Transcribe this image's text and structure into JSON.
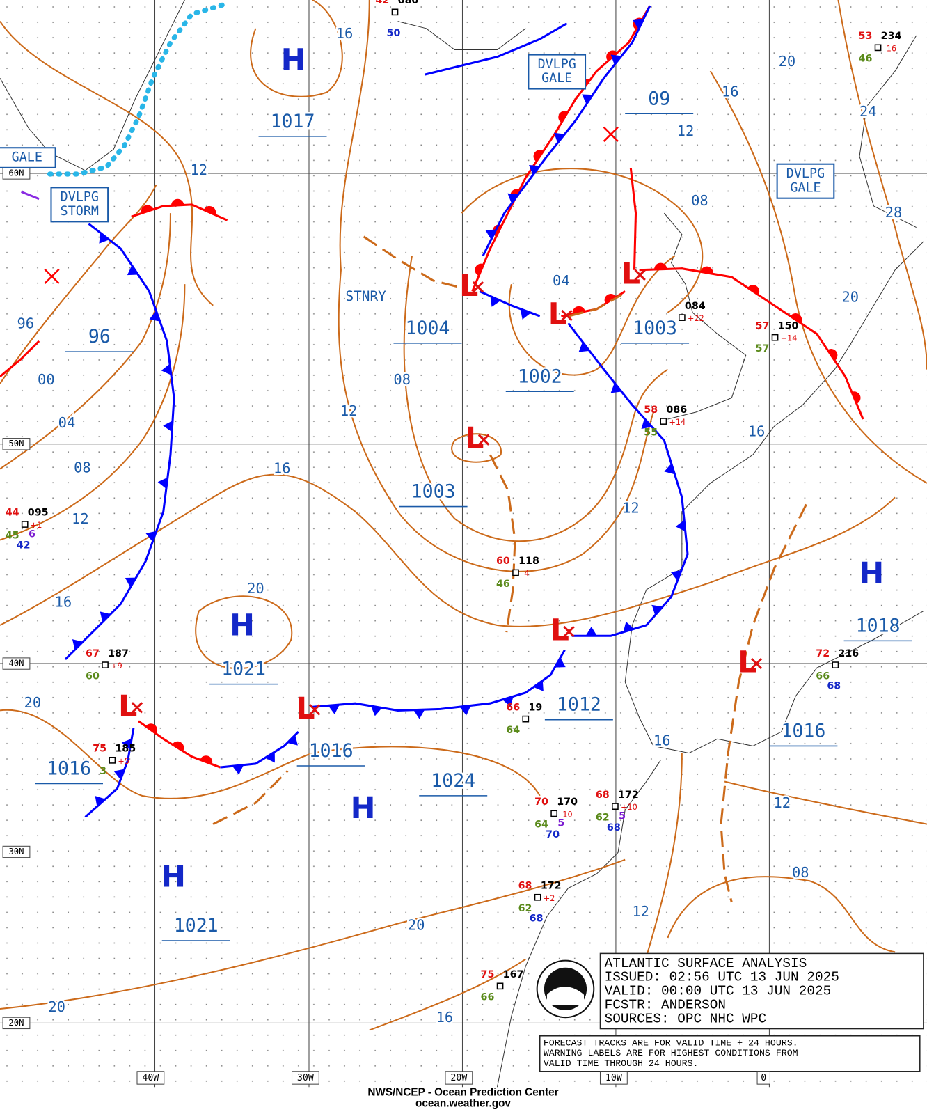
{
  "info_box": [
    "ATLANTIC SURFACE ANALYSIS",
    "ISSUED: 02:56 UTC 13 JUN 2025",
    "VALID:  00:00 UTC 13 JUN 2025",
    "FCSTR:  ANDERSON",
    "SOURCES: OPC NHC WPC"
  ],
  "note": [
    "FORECAST TRACKS ARE FOR VALID TIME + 24 HOURS.",
    "WARNING LABELS ARE FOR HIGHEST CONDITIONS FROM",
    "VALID TIME THROUGH 24 HOURS."
  ],
  "footer": [
    "NWS/NCEP - Ocean Prediction Center",
    "ocean.weather.gov"
  ],
  "lat_labels": [
    "60N",
    "50N",
    "40N",
    "30N",
    "20N"
  ],
  "lon_labels": [
    "40W",
    "30W",
    "20W",
    "10W",
    "0"
  ],
  "centers": [
    "H",
    "H",
    "H",
    "H",
    "H",
    "L",
    "L",
    "L",
    "L",
    "L",
    "L",
    "L",
    "L"
  ],
  "pressure_labels": [
    "1017",
    "1021",
    "1024",
    "1021",
    "1018",
    "1004",
    "1002",
    "1003",
    "1003",
    "1012",
    "1016",
    "1016",
    "1016",
    "96",
    "09"
  ],
  "isobar_labels": [
    "16",
    "12",
    "20",
    "16",
    "24",
    "12",
    "08",
    "28",
    "04",
    "20",
    "96",
    "00",
    "08",
    "12",
    "04",
    "16",
    "08",
    "16",
    "12",
    "12",
    "16",
    "20",
    "20",
    "16",
    "12",
    "08",
    "20",
    "12",
    "20",
    "16"
  ],
  "warnings": [
    [
      "GALE"
    ],
    [
      "DVLPG",
      "STORM"
    ],
    [
      "DVLPG",
      "GALE"
    ],
    [
      "DVLPG",
      "GALE"
    ]
  ],
  "front_label": "STNRY",
  "stations": [
    {
      "t": "42",
      "p": "080",
      "x": [
        "50"
      ]
    },
    {
      "t": "53",
      "p": "234",
      "tend": "-16",
      "d": "46"
    },
    {
      "p": "084",
      "tend": "+22"
    },
    {
      "t": "57",
      "p": "150",
      "tend": "+14",
      "d": "57"
    },
    {
      "t": "58",
      "p": "086",
      "tend": "+14",
      "d": "55"
    },
    {
      "t": "44",
      "p": "095",
      "tend": "+1",
      "d": "45",
      "x": [
        "6",
        "42"
      ]
    },
    {
      "t": "60",
      "p": "118",
      "tend": "-4",
      "d": "46"
    },
    {
      "t": "67",
      "p": "187",
      "tend": "+9",
      "d": "60"
    },
    {
      "t": "66",
      "p": "19",
      "d": "64"
    },
    {
      "t": "75",
      "p": "185",
      "tend": "+5",
      "d": "3"
    },
    {
      "t": "70",
      "p": "170",
      "tend": "-10",
      "d": "64",
      "x": [
        "5",
        "70"
      ]
    },
    {
      "t": "68",
      "p": "172",
      "tend": "+10",
      "d": "62",
      "x": [
        "5",
        "68"
      ]
    },
    {
      "t": "68",
      "p": "172",
      "tend": "+2",
      "d": "62",
      "x": [
        "68"
      ]
    },
    {
      "t": "75",
      "p": "167",
      "d": "66"
    },
    {
      "t": "72",
      "p": "216",
      "d": "66",
      "x": [
        "68"
      ]
    }
  ]
}
